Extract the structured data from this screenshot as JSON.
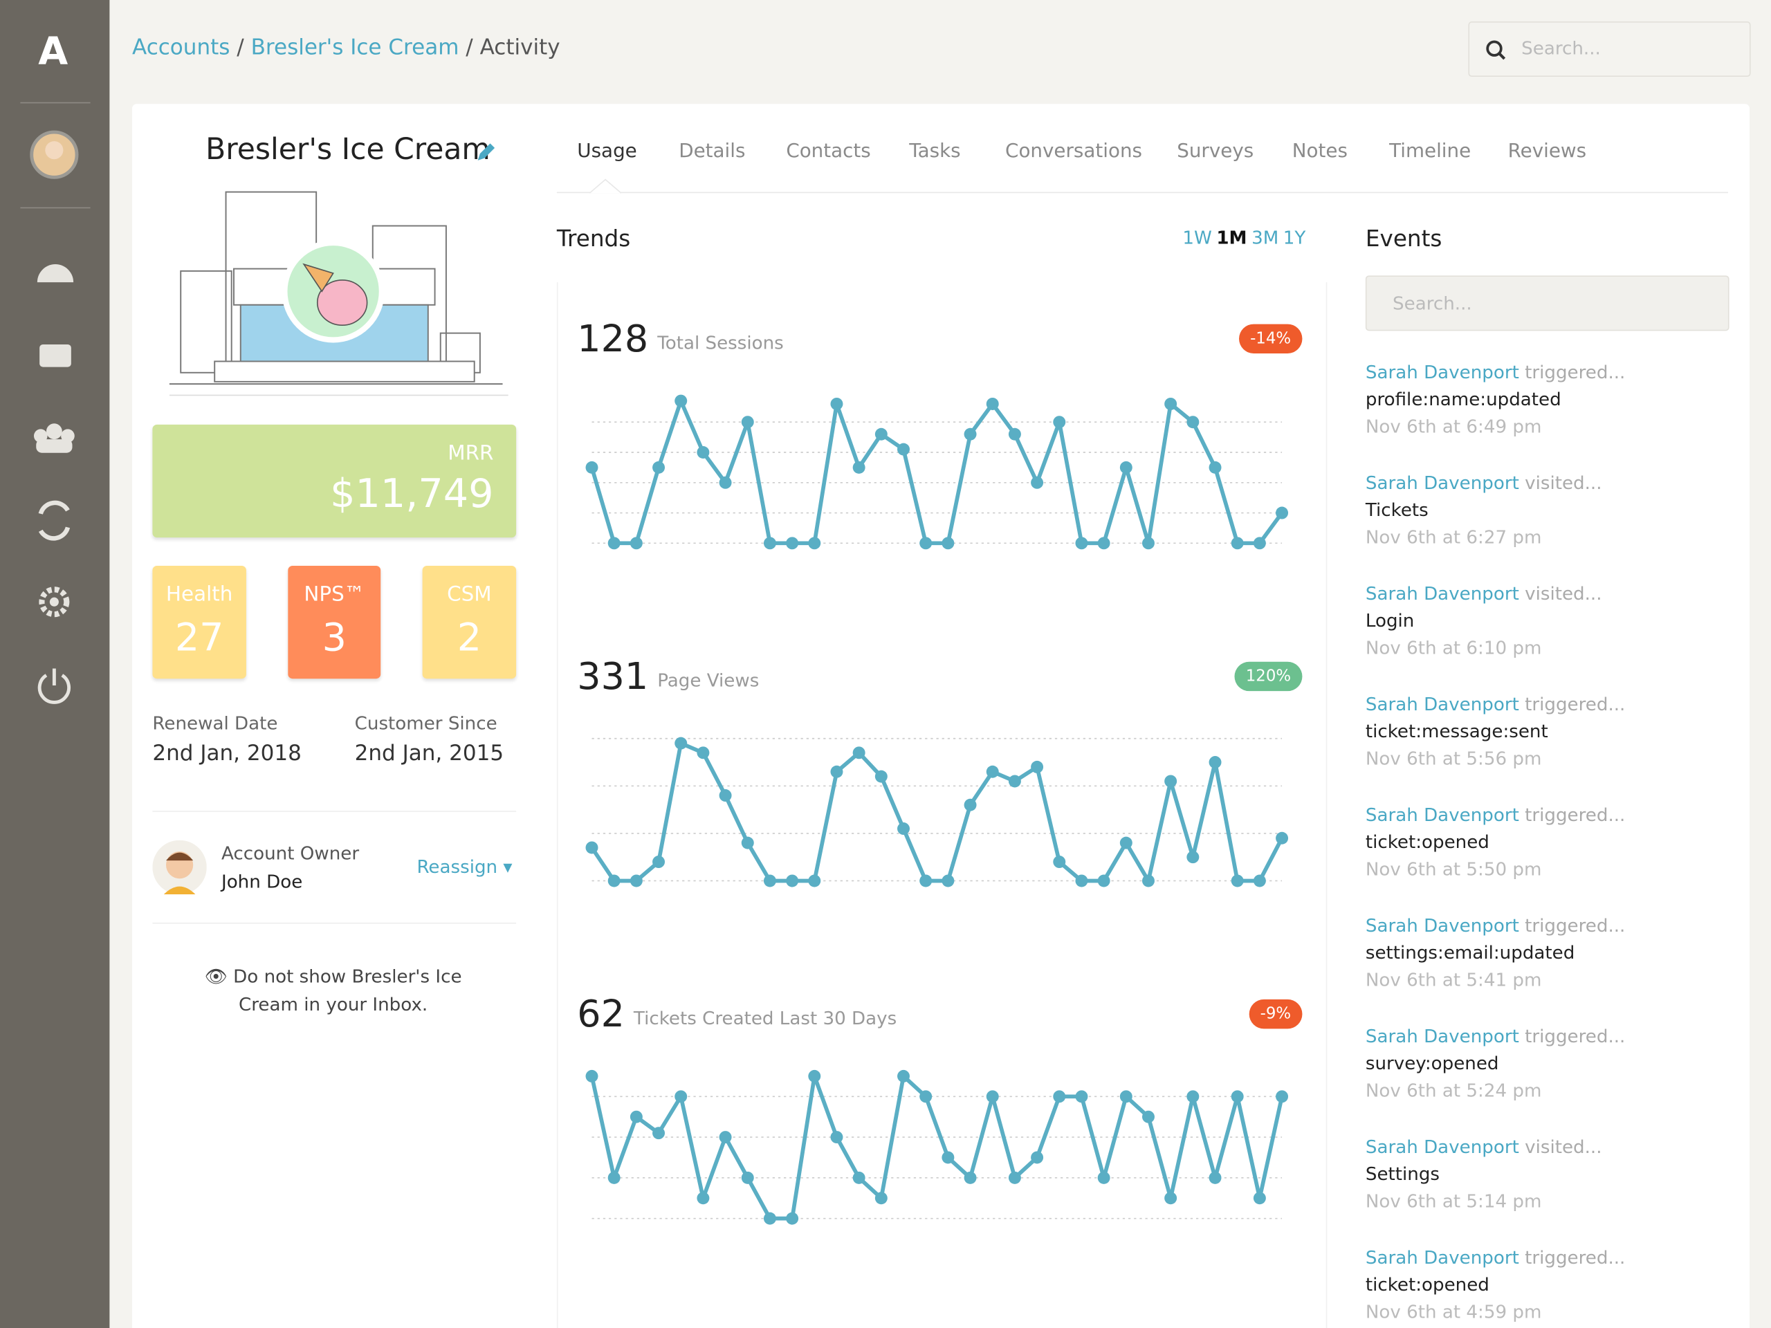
{
  "breadcrumb": [
    "Accounts",
    "Bresler's Ice Cream",
    "Activity"
  ],
  "search_placeholder": "Search...",
  "account": {
    "name": "Bresler's Ice Cream",
    "mrr_label": "MRR",
    "mrr": "$11,749",
    "scores": [
      {
        "label": "Health",
        "value": "27"
      },
      {
        "label": "NPS™",
        "value": "3"
      },
      {
        "label": "CSM",
        "value": "2"
      }
    ],
    "renewal_label": "Renewal Date",
    "renewal": "2nd Jan, 2018",
    "since_label": "Customer Since",
    "since": "2nd Jan, 2015",
    "owner_label": "Account Owner",
    "owner": "John Doe",
    "reassign": "Reassign",
    "inbox_note": "Do not show Bresler's Ice Cream in your Inbox."
  },
  "tabs": [
    "Usage",
    "Details",
    "Contacts",
    "Tasks",
    "Conversations",
    "Surveys",
    "Notes",
    "Timeline",
    "Reviews"
  ],
  "trends": {
    "title": "Trends",
    "periods": [
      "1W",
      "1M",
      "3M",
      "1Y"
    ],
    "active_period": "1M"
  },
  "chart_data": [
    {
      "type": "line",
      "total": "128",
      "title": "Total Sessions",
      "change": "-14%",
      "change_color": "#ef5b2b",
      "color": "#5aaec4",
      "ylim": [
        0,
        4.7
      ],
      "yticks": [
        0,
        1,
        2,
        3,
        4
      ],
      "grid": true,
      "values": [
        2.5,
        0,
        0,
        2.5,
        4.7,
        3,
        2,
        4,
        0,
        0,
        0,
        4.6,
        2.5,
        3.6,
        3.1,
        0,
        0,
        3.6,
        4.6,
        3.6,
        2,
        4,
        0,
        0,
        2.5,
        0,
        4.6,
        4,
        2.5,
        0,
        0,
        1
      ]
    },
    {
      "type": "line",
      "total": "331",
      "title": "Page Views",
      "change": "120%",
      "change_color": "#6cc08f",
      "color": "#5aaec4",
      "ylim": [
        0,
        3
      ],
      "yticks": [
        0,
        1,
        2,
        3
      ],
      "grid": true,
      "values": [
        0.7,
        0,
        0,
        0.4,
        2.9,
        2.7,
        1.8,
        0.8,
        0,
        0,
        0,
        2.3,
        2.7,
        2.2,
        1.1,
        0,
        0,
        1.6,
        2.3,
        2.1,
        2.4,
        0.4,
        0,
        0,
        0.8,
        0,
        2.1,
        0.5,
        2.5,
        0,
        0,
        0.9
      ]
    },
    {
      "type": "line",
      "total": "62",
      "title": "Tickets Created Last 30 Days",
      "change": "-9%",
      "change_color": "#ef5b2b",
      "color": "#5aaec4",
      "ylim": [
        0,
        3.5
      ],
      "yticks": [
        0,
        1,
        2,
        3
      ],
      "grid": true,
      "values": [
        3.5,
        1,
        2.5,
        2.1,
        3,
        0.5,
        2,
        1,
        0,
        0,
        3.5,
        2,
        1,
        0.5,
        3.5,
        3,
        1.5,
        1,
        3,
        1,
        1.5,
        3,
        3,
        1,
        3,
        2.5,
        0.5,
        3,
        1,
        3,
        0.5,
        3
      ]
    }
  ],
  "events": {
    "title": "Events",
    "search_placeholder": "Search...",
    "items": [
      {
        "who": "Sarah Davenport",
        "action": "triggered...",
        "what": "profile:name:updated",
        "when": "Nov 6th at 6:49 pm"
      },
      {
        "who": "Sarah Davenport",
        "action": "visited...",
        "what": "Tickets",
        "when": "Nov 6th at 6:27 pm"
      },
      {
        "who": "Sarah Davenport",
        "action": "visited...",
        "what": "Login",
        "when": "Nov 6th at 6:10 pm"
      },
      {
        "who": "Sarah Davenport",
        "action": "triggered...",
        "what": "ticket:message:sent",
        "when": "Nov 6th at 5:56 pm"
      },
      {
        "who": "Sarah Davenport",
        "action": "triggered...",
        "what": "ticket:opened",
        "when": "Nov 6th at 5:50 pm"
      },
      {
        "who": "Sarah Davenport",
        "action": "triggered...",
        "what": "settings:email:updated",
        "when": "Nov 6th at 5:41 pm"
      },
      {
        "who": "Sarah Davenport",
        "action": "triggered...",
        "what": "survey:opened",
        "when": "Nov 6th at 5:24 pm"
      },
      {
        "who": "Sarah Davenport",
        "action": "visited...",
        "what": "Settings",
        "when": "Nov 6th at 5:14 pm"
      },
      {
        "who": "Sarah Davenport",
        "action": "triggered...",
        "what": "ticket:opened",
        "when": "Nov 6th at 4:59 pm"
      }
    ]
  }
}
